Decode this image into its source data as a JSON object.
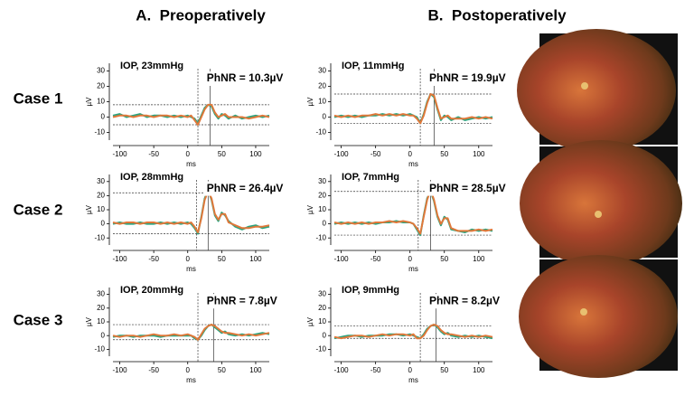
{
  "figure": {
    "headers": [
      "A.  Preoperatively",
      "B.  Postoperatively"
    ],
    "rows": [
      "Case 1",
      "Case 2",
      "Case 3"
    ]
  },
  "chart_data": [
    {
      "type": "line",
      "iop": "IOP, 23mmHg",
      "phnr": "PhNR = 10.3µV",
      "xlabel": "ms",
      "ylabel": "µV",
      "x": [
        -110,
        -100,
        -90,
        -80,
        -70,
        -60,
        -50,
        -40,
        -30,
        -20,
        -10,
        0,
        5,
        10,
        15,
        20,
        25,
        30,
        35,
        40,
        45,
        50,
        55,
        60,
        70,
        80,
        90,
        100,
        110,
        120
      ],
      "series": [
        {
          "color": "#2ba37e",
          "values": [
            1,
            2,
            0,
            1,
            2,
            0,
            1,
            1,
            0,
            1,
            0,
            1,
            0,
            -1,
            -4,
            1,
            6,
            8,
            7,
            2,
            -1,
            2,
            1,
            -1,
            1,
            -1,
            0,
            1,
            0,
            1
          ]
        },
        {
          "color": "#e0783a",
          "values": [
            0,
            1,
            1,
            0,
            1,
            1,
            0,
            1,
            1,
            0,
            1,
            0,
            1,
            -2,
            -5,
            0,
            5,
            8,
            8,
            3,
            0,
            1,
            2,
            0,
            0,
            0,
            -1,
            0,
            1,
            0
          ]
        }
      ],
      "xlim": [
        -110,
        120
      ],
      "xticks": [
        -100,
        -50,
        0,
        50,
        100
      ],
      "ylim": [
        -15,
        35
      ],
      "yticks": [
        -10,
        0,
        10,
        20,
        30
      ],
      "hlines": [
        8,
        -5
      ],
      "vlines": [
        15,
        33
      ]
    },
    {
      "type": "line",
      "iop": "IOP, 11mmHg",
      "phnr": "PhNR = 19.9µV",
      "xlabel": "ms",
      "ylabel": "µV",
      "x": [
        -110,
        -100,
        -90,
        -80,
        -70,
        -60,
        -50,
        -40,
        -30,
        -20,
        -10,
        0,
        5,
        10,
        15,
        20,
        25,
        30,
        35,
        40,
        45,
        50,
        55,
        60,
        70,
        80,
        90,
        100,
        110,
        120
      ],
      "series": [
        {
          "color": "#2ba37e",
          "values": [
            0,
            1,
            0,
            1,
            0,
            1,
            1,
            2,
            1,
            2,
            1,
            2,
            1,
            0,
            -4,
            2,
            10,
            15,
            13,
            5,
            -2,
            1,
            0,
            -2,
            0,
            -2,
            -1,
            0,
            -1,
            0
          ]
        },
        {
          "color": "#e0783a",
          "values": [
            1,
            0,
            1,
            0,
            1,
            1,
            2,
            1,
            2,
            1,
            2,
            1,
            1,
            -1,
            -4,
            1,
            9,
            15,
            14,
            6,
            -1,
            0,
            1,
            -1,
            -1,
            -1,
            0,
            -1,
            0,
            -1
          ]
        }
      ],
      "xlim": [
        -110,
        120
      ],
      "xticks": [
        -100,
        -50,
        0,
        50,
        100
      ],
      "ylim": [
        -15,
        35
      ],
      "yticks": [
        -10,
        0,
        10,
        20,
        30
      ],
      "hlines": [
        15,
        -4
      ],
      "vlines": [
        15,
        35
      ]
    },
    {
      "type": "line",
      "iop": "IOP, 28mmHg",
      "phnr": "PhNR = 26.4µV",
      "xlabel": "ms",
      "ylabel": "µV",
      "x": [
        -110,
        -100,
        -90,
        -80,
        -70,
        -60,
        -50,
        -40,
        -30,
        -20,
        -10,
        0,
        5,
        10,
        15,
        20,
        25,
        30,
        35,
        40,
        45,
        50,
        55,
        60,
        70,
        80,
        90,
        100,
        110,
        120
      ],
      "series": [
        {
          "color": "#2ba37e",
          "values": [
            0,
            1,
            0,
            0,
            1,
            0,
            0,
            1,
            0,
            1,
            0,
            1,
            0,
            -3,
            -7,
            5,
            18,
            24,
            17,
            6,
            2,
            8,
            6,
            2,
            -2,
            -4,
            -2,
            -1,
            -3,
            -2
          ]
        },
        {
          "color": "#e0783a",
          "values": [
            1,
            0,
            1,
            1,
            0,
            1,
            1,
            0,
            1,
            0,
            1,
            0,
            1,
            -2,
            -6,
            4,
            17,
            23,
            18,
            7,
            3,
            7,
            7,
            1,
            -1,
            -3,
            -3,
            -2,
            -2,
            -1
          ]
        }
      ],
      "xlim": [
        -110,
        120
      ],
      "xticks": [
        -100,
        -50,
        0,
        50,
        100
      ],
      "ylim": [
        -15,
        35
      ],
      "yticks": [
        -10,
        0,
        10,
        20,
        30
      ],
      "hlines": [
        22,
        -7
      ],
      "vlines": [
        13,
        30
      ]
    },
    {
      "type": "line",
      "iop": "IOP, 7mmHg",
      "phnr": "PhNR = 28.5µV",
      "xlabel": "ms",
      "ylabel": "µV",
      "x": [
        -110,
        -100,
        -90,
        -80,
        -70,
        -60,
        -50,
        -40,
        -30,
        -20,
        -10,
        0,
        5,
        10,
        15,
        20,
        25,
        30,
        35,
        40,
        45,
        50,
        55,
        60,
        70,
        80,
        90,
        100,
        110,
        120
      ],
      "series": [
        {
          "color": "#2ba37e",
          "values": [
            0,
            1,
            0,
            1,
            0,
            1,
            0,
            1,
            1,
            2,
            1,
            1,
            0,
            -4,
            -8,
            6,
            18,
            23,
            16,
            5,
            -1,
            5,
            3,
            -4,
            -5,
            -6,
            -4,
            -5,
            -4,
            -5
          ]
        },
        {
          "color": "#e0783a",
          "values": [
            1,
            0,
            1,
            0,
            1,
            0,
            1,
            1,
            2,
            1,
            2,
            1,
            0,
            -3,
            -7,
            5,
            17,
            24,
            17,
            6,
            0,
            4,
            4,
            -3,
            -5,
            -5,
            -5,
            -4,
            -5,
            -4
          ]
        }
      ],
      "xlim": [
        -110,
        120
      ],
      "xticks": [
        -100,
        -50,
        0,
        50,
        100
      ],
      "ylim": [
        -15,
        35
      ],
      "yticks": [
        -10,
        0,
        10,
        20,
        30
      ],
      "hlines": [
        23,
        -8
      ],
      "vlines": [
        12,
        30
      ]
    },
    {
      "type": "line",
      "iop": "IOP, 20mmHg",
      "phnr": "PhNR = 7.8µV",
      "xlabel": "ms",
      "ylabel": "µV",
      "x": [
        -110,
        -100,
        -90,
        -80,
        -70,
        -60,
        -50,
        -40,
        -30,
        -20,
        -10,
        0,
        5,
        10,
        15,
        20,
        25,
        30,
        35,
        40,
        45,
        50,
        55,
        60,
        70,
        80,
        90,
        100,
        110,
        120
      ],
      "series": [
        {
          "color": "#2ba37e",
          "values": [
            -1,
            0,
            0,
            -1,
            0,
            0,
            0,
            -1,
            0,
            0,
            0,
            0,
            0,
            -2,
            -3,
            0,
            4,
            7,
            8,
            6,
            4,
            2,
            3,
            1,
            0,
            1,
            0,
            1,
            2,
            1
          ]
        },
        {
          "color": "#e0783a",
          "values": [
            0,
            -1,
            0,
            0,
            -1,
            0,
            1,
            0,
            0,
            1,
            0,
            1,
            0,
            -1,
            -3,
            1,
            5,
            7,
            8,
            7,
            5,
            3,
            2,
            2,
            1,
            0,
            1,
            0,
            1,
            2
          ]
        }
      ],
      "xlim": [
        -110,
        120
      ],
      "xticks": [
        -100,
        -50,
        0,
        50,
        100
      ],
      "ylim": [
        -15,
        35
      ],
      "yticks": [
        -10,
        0,
        10,
        20,
        30
      ],
      "hlines": [
        8,
        -3
      ],
      "vlines": [
        15,
        38
      ]
    },
    {
      "type": "line",
      "iop": "IOP, 9mmHg",
      "phnr": "PhNR = 8.2µV",
      "xlabel": "ms",
      "ylabel": "µV",
      "x": [
        -110,
        -100,
        -90,
        -80,
        -70,
        -60,
        -50,
        -40,
        -30,
        -20,
        -10,
        0,
        5,
        10,
        15,
        20,
        25,
        30,
        35,
        40,
        45,
        50,
        55,
        60,
        70,
        80,
        90,
        100,
        110,
        120
      ],
      "series": [
        {
          "color": "#2ba37e",
          "values": [
            -2,
            -1,
            0,
            0,
            -1,
            0,
            0,
            0,
            1,
            1,
            0,
            1,
            0,
            -1,
            -2,
            1,
            5,
            7,
            8,
            6,
            3,
            1,
            2,
            0,
            -1,
            0,
            -1,
            0,
            -1,
            -2
          ]
        },
        {
          "color": "#e0783a",
          "values": [
            -1,
            -2,
            -1,
            0,
            0,
            -1,
            0,
            1,
            0,
            1,
            1,
            0,
            1,
            -2,
            -2,
            0,
            4,
            7,
            8,
            7,
            4,
            2,
            1,
            1,
            0,
            -1,
            0,
            -1,
            0,
            -1
          ]
        }
      ],
      "xlim": [
        -110,
        120
      ],
      "xticks": [
        -100,
        -50,
        0,
        50,
        100
      ],
      "ylim": [
        -15,
        35
      ],
      "yticks": [
        -10,
        0,
        10,
        20,
        30
      ],
      "hlines": [
        7,
        -2
      ],
      "vlines": [
        15,
        38
      ]
    }
  ]
}
